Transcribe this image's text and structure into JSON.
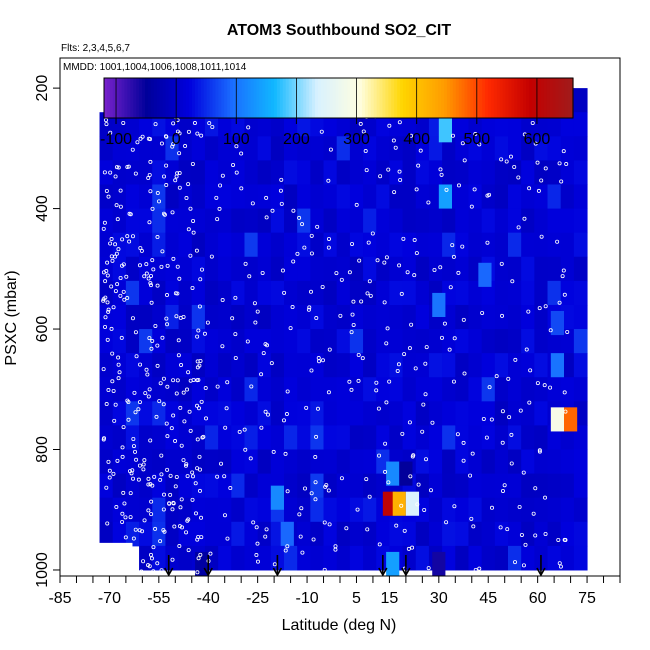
{
  "chart_data": {
    "type": "heatmap",
    "title": "ATOM3 Southbound SO2_CIT",
    "subtitle_flights": "Flts: 2,3,4,5,6,7",
    "subtitle_dates": "MMDD: 1001,1004,1006,1008,1011,1014",
    "xlabel": "Latitude (deg N)",
    "ylabel": "PSXC (mbar)",
    "xlim": [
      -85,
      85
    ],
    "ylim": [
      1010,
      150
    ],
    "x_ticks": [
      -85,
      -70,
      -55,
      -40,
      -25,
      -10,
      5,
      15,
      30,
      45,
      60,
      75
    ],
    "x_tick_labels": [
      "-85",
      "-70",
      "-55",
      "-40",
      "-25",
      "-10",
      "5",
      "15",
      "30",
      "45",
      "60",
      "75"
    ],
    "y_ticks": [
      200,
      400,
      600,
      800,
      1000
    ],
    "y_tick_labels": [
      "200",
      "400",
      "600",
      "800",
      "1000"
    ],
    "colorbar": {
      "min": -120,
      "max": 660,
      "ticks": [
        -100,
        0,
        100,
        200,
        300,
        400,
        500,
        600
      ],
      "tick_labels": [
        "-100",
        "0",
        "100",
        "200",
        "300",
        "400",
        "500",
        "600"
      ],
      "colors": [
        "#7a22cc",
        "#00009a",
        "#0000dd",
        "#1a6cff",
        "#11b8ff",
        "#d8f1ff",
        "#fffee0",
        "#ffd500",
        "#ff9a00",
        "#ff2a00",
        "#c40000",
        "#a01c1c"
      ]
    },
    "value_cells": [
      {
        "lat": 32,
        "p": 270,
        "v": 180
      },
      {
        "lat": 32,
        "p": 380,
        "v": 140
      },
      {
        "lat": 44,
        "p": 510,
        "v": 90
      },
      {
        "lat": 30,
        "p": 560,
        "v": 100
      },
      {
        "lat": 66,
        "p": 590,
        "v": 70
      },
      {
        "lat": 66,
        "p": 660,
        "v": 100
      },
      {
        "lat": 66,
        "p": 750,
        "v": 290
      },
      {
        "lat": 70,
        "p": 750,
        "v": 480
      },
      {
        "lat": 16,
        "p": 840,
        "v": 120
      },
      {
        "lat": 20,
        "p": 840,
        "v": -50
      },
      {
        "lat": 15,
        "p": 890,
        "v": 600
      },
      {
        "lat": 18,
        "p": 890,
        "v": 420
      },
      {
        "lat": 22,
        "p": 890,
        "v": 240
      },
      {
        "lat": -19,
        "p": 880,
        "v": 120
      },
      {
        "lat": -16,
        "p": 940,
        "v": 90
      },
      {
        "lat": 16,
        "p": 990,
        "v": 140
      },
      {
        "lat": 30,
        "p": 990,
        "v": -60
      },
      {
        "lat": -42,
        "p": 990,
        "v": -40
      }
    ],
    "markers": {
      "type": "flight sample points",
      "color": "white"
    },
    "arrows_at_latitude": [
      -52,
      -40,
      -19,
      13,
      20,
      61
    ]
  }
}
